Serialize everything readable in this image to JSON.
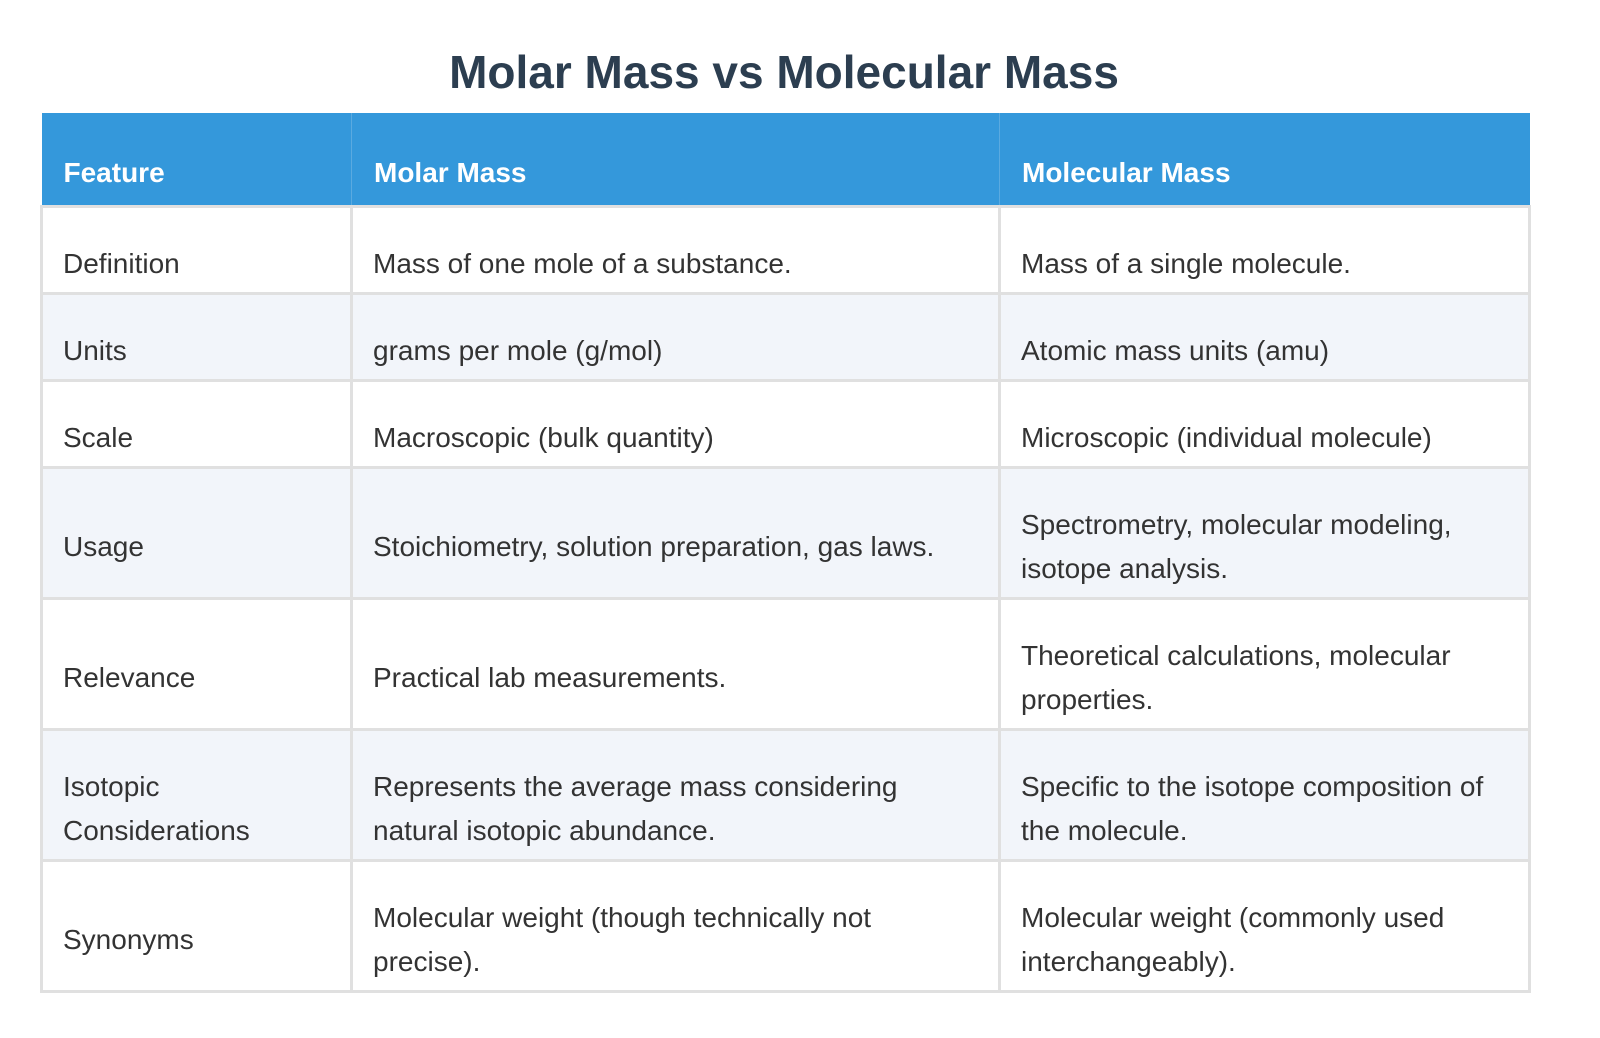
{
  "title": "Molar Mass vs Molecular Mass",
  "table": {
    "headers": [
      "Feature",
      "Molar Mass",
      "Molecular Mass"
    ],
    "rows": [
      [
        "Definition",
        "Mass of one mole of a substance.",
        "Mass of a single molecule."
      ],
      [
        "Units",
        "grams per mole (g/mol)",
        "Atomic mass units (amu)"
      ],
      [
        "Scale",
        "Macroscopic (bulk quantity)",
        "Microscopic (individual molecule)"
      ],
      [
        "Usage",
        "Stoichiometry, solution preparation, gas laws.",
        "Spectrometry, molecular modeling, isotope analysis."
      ],
      [
        "Relevance",
        "Practical lab measurements.",
        "Theoretical calculations, molecular properties."
      ],
      [
        "Isotopic Considerations",
        "Represents the average mass considering natural isotopic abundance.",
        "Specific to the isotope composition of the molecule."
      ],
      [
        "Synonyms",
        "Molecular weight (though technically not precise).",
        "Molecular weight (commonly used interchangeably)."
      ]
    ]
  },
  "colors": {
    "header_bg": "#3498db",
    "title": "#2c3e50",
    "alt_row": "#f2f5fa",
    "border": "#e0e0e0"
  }
}
